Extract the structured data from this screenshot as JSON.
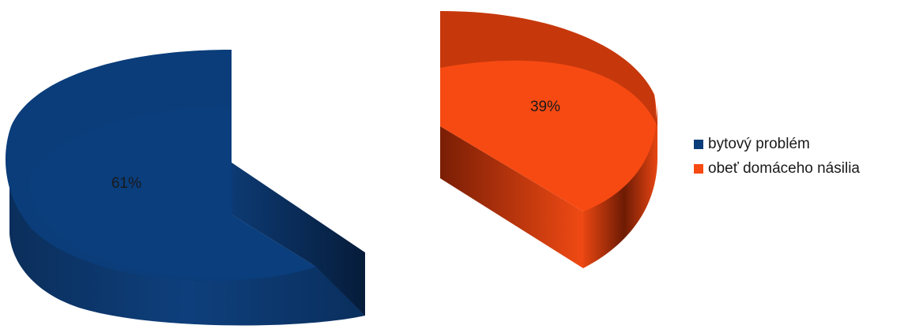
{
  "chart_data": {
    "type": "pie",
    "style": "3d-exploded",
    "slices": [
      {
        "label": "bytový problém",
        "value": 61,
        "data_label": "61%",
        "color": "#0a3d7a"
      },
      {
        "label": "obeť domáceho násilia",
        "value": 39,
        "data_label": "39%",
        "color": "#f74a12"
      }
    ],
    "legend_position": "right"
  }
}
